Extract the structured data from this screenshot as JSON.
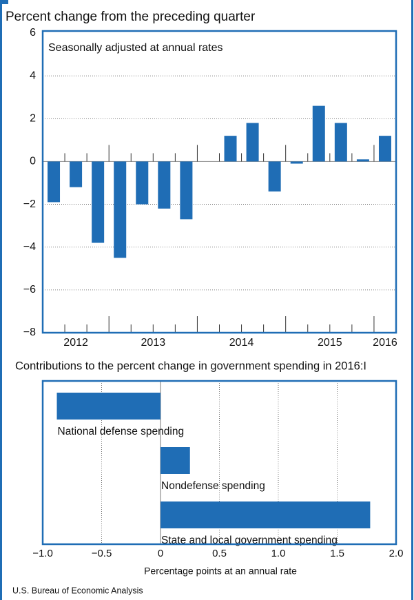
{
  "chart_data": [
    {
      "type": "bar",
      "title": "Percent change from the preceding quarter",
      "annotation": "Seasonally adjusted at annual rates",
      "categories": [
        "2012",
        "2012",
        "2012",
        "2013",
        "2013",
        "2013",
        "2013",
        "2014",
        "2014",
        "2014",
        "2014",
        "2015",
        "2015",
        "2015",
        "2015",
        "2016"
      ],
      "values": [
        -1.9,
        -1.2,
        -3.8,
        -4.5,
        -2.0,
        -2.2,
        -2.7,
        0,
        1.2,
        1.8,
        -1.4,
        -0.1,
        2.6,
        1.8,
        0.1,
        1.2
      ],
      "color": "#1f6db5",
      "ylim": [
        -8,
        6
      ],
      "yticks": [
        {
          "value": -8,
          "label": "−8"
        },
        {
          "value": -6,
          "label": "−6"
        },
        {
          "value": -4,
          "label": "−4"
        },
        {
          "value": -2,
          "label": "−2"
        },
        0,
        2,
        4,
        6
      ],
      "grid": true
    },
    {
      "type": "barh",
      "title": "Contributions to the percent change in government spending in 2016:I",
      "xlabel": "Percentage points at an annual rate",
      "categories": [
        "National defense spending",
        "Nondefense spending",
        "State and local government spending"
      ],
      "values": [
        -0.88,
        0.25,
        1.78
      ],
      "color": "#1f6db5",
      "xlim": [
        -1,
        2
      ],
      "xticks": [
        {
          "value": -1,
          "label": "−1.0"
        },
        {
          "value": -0.5,
          "label": "−0.5"
        },
        0,
        0.5,
        {
          "value": 1,
          "label": "1.0"
        },
        1.5,
        {
          "value": 2,
          "label": "2.0"
        }
      ],
      "grid": true
    }
  ],
  "source": "U.S. Bureau of Economic Analysis"
}
